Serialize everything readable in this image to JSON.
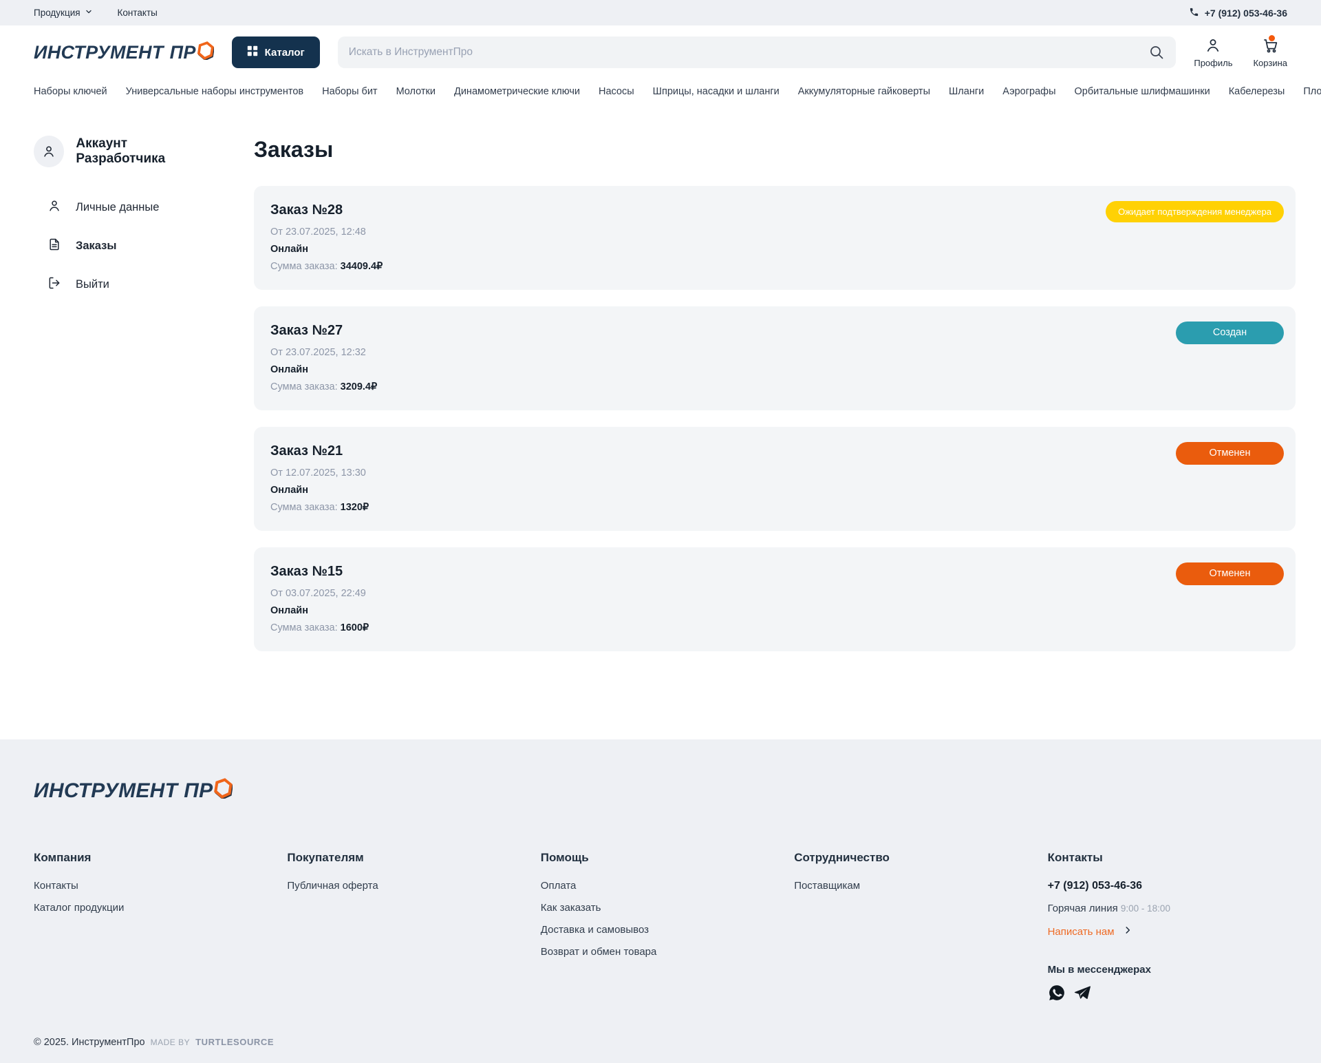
{
  "topbar": {
    "products": "Продукция",
    "contacts": "Контакты",
    "phone": "+7 (912) 053-46-36"
  },
  "header": {
    "logo_word": "ИНСТРУМЕНТ",
    "logo_pro": "ПР",
    "catalog": "Каталог",
    "search_placeholder": "Искать в ИнструментПро",
    "profile": "Профиль",
    "cart": "Корзина"
  },
  "nav": {
    "items": [
      "Наборы ключей",
      "Универсальные наборы инструментов",
      "Наборы бит",
      "Молотки",
      "Динамометрические ключи",
      "Насосы",
      "Шприцы, насадки и шланги",
      "Аккумуляторные гайковерты",
      "Шланги",
      "Аэрографы",
      "Орбитальные шлифмашинки",
      "Кабелерезы",
      "Плоскогубцы"
    ]
  },
  "sidebar": {
    "account_name": "Аккаунт Разработчика",
    "items": [
      {
        "label": "Личные данные"
      },
      {
        "label": "Заказы"
      },
      {
        "label": "Выйти"
      }
    ]
  },
  "orders": {
    "title": "Заказы",
    "items": [
      {
        "title": "Заказ №28",
        "date": "От 23.07.2025, 12:48",
        "payment": "Онлайн",
        "sum_label": "Сумма заказа:",
        "sum": "34409.4₽",
        "status": "Ожидает подтверждения менеджера",
        "status_color": "#FFD104",
        "badge_style": "small"
      },
      {
        "title": "Заказ №27",
        "date": "От 23.07.2025, 12:32",
        "payment": "Онлайн",
        "sum_label": "Сумма заказа:",
        "sum": "3209.4₽",
        "status": "Создан",
        "status_color": "#2B9DAF",
        "badge_style": "wide"
      },
      {
        "title": "Заказ №21",
        "date": "От 12.07.2025, 13:30",
        "payment": "Онлайн",
        "sum_label": "Сумма заказа:",
        "sum": "1320₽",
        "status": "Отменен",
        "status_color": "#EA5C0D",
        "badge_style": "wide"
      },
      {
        "title": "Заказ №15",
        "date": "От 03.07.2025, 22:49",
        "payment": "Онлайн",
        "sum_label": "Сумма заказа:",
        "sum": "1600₽",
        "status": "Отменен",
        "status_color": "#EA5C0D",
        "badge_style": "wide"
      }
    ]
  },
  "footer": {
    "logo_word": "ИНСТРУМЕНТ",
    "logo_pro": "ПР",
    "columns": [
      {
        "title": "Компания",
        "links": [
          "Контакты",
          "Каталог продукции"
        ]
      },
      {
        "title": "Покупателям",
        "links": [
          "Публичная оферта"
        ]
      },
      {
        "title": "Помощь",
        "links": [
          "Оплата",
          "Как заказать",
          "Доставка и самовывоз",
          "Возврат и обмен товара"
        ]
      },
      {
        "title": "Сотрудничество",
        "links": [
          "Поставщикам"
        ]
      }
    ],
    "contacts": {
      "title": "Контакты",
      "phone": "+7 (912) 053-46-36",
      "hotline_label": "Горячая линия",
      "hotline_hours": "9:00 - 18:00",
      "write_us": "Написать нам",
      "messengers_label": "Мы в мессенджерах"
    },
    "copyright": "© 2025. ИнструментПро",
    "made_by_prefix": "MADE BY",
    "made_by": "TURTLESOURCE"
  },
  "colors": {
    "accent_orange": "#F0651A",
    "navy": "#14324E",
    "badge_yellow": "#FFD104",
    "badge_teal": "#2B9DAF",
    "badge_orange": "#EA5C0D"
  }
}
